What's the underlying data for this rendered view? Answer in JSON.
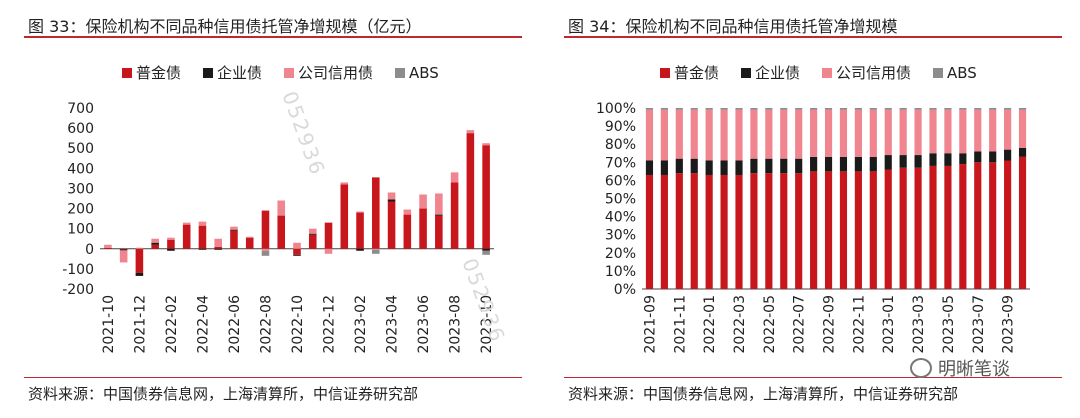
{
  "left_panel": {
    "title": "图 33：保险机构不同品种信用债托管净增规模（亿元）",
    "source": "资料来源：中国债券信息网，上海清算所，中信证券研究部"
  },
  "right_panel": {
    "title": "图 34：保险机构不同品种信用债托管净增规模",
    "source": "资料来源：中国债券信息网，上海清算所，中信证券研究部"
  },
  "watermark": "052936",
  "brand": "明晰笔谈",
  "colors": {
    "普金债": "#c8161d",
    "企业债": "#1a1a1a",
    "公司信用债": "#f0848f",
    "ABS": "#8c8c8c",
    "rule": "#c0282f"
  },
  "chart_data": [
    {
      "type": "bar",
      "stacked": true,
      "categories": [
        "2021-10",
        "2021-11",
        "2021-12",
        "2022-01",
        "2022-02",
        "2022-03",
        "2022-04",
        "2022-05",
        "2022-06",
        "2022-07",
        "2022-08",
        "2022-09",
        "2022-10",
        "2022-11",
        "2022-12",
        "2023-01",
        "2023-02",
        "2023-03",
        "2023-04",
        "2023-05",
        "2023-06",
        "2023-07",
        "2023-08",
        "2023-09",
        "2023-10"
      ],
      "tick_labels": [
        "2021-10",
        "2021-12",
        "2022-02",
        "2022-04",
        "2022-06",
        "2022-08",
        "2022-10",
        "2022-12",
        "2023-02",
        "2023-04",
        "2023-06",
        "2023-08",
        "2023-10"
      ],
      "series": [
        {
          "name": "普金债",
          "values": [
            5,
            -3,
            -120,
            20,
            45,
            120,
            115,
            10,
            90,
            55,
            190,
            165,
            -30,
            70,
            130,
            320,
            180,
            355,
            235,
            170,
            200,
            165,
            330,
            575,
            515
          ]
        },
        {
          "name": "企业债",
          "values": [
            0,
            -5,
            -15,
            10,
            -10,
            0,
            -5,
            -5,
            5,
            0,
            0,
            0,
            -5,
            5,
            0,
            0,
            -10,
            0,
            10,
            0,
            0,
            5,
            0,
            0,
            -10
          ]
        },
        {
          "name": "公司信用债",
          "values": [
            15,
            -60,
            5,
            20,
            10,
            10,
            20,
            40,
            15,
            5,
            -10,
            75,
            30,
            25,
            -25,
            10,
            5,
            -5,
            35,
            25,
            70,
            105,
            50,
            15,
            10
          ]
        },
        {
          "name": "ABS",
          "values": [
            0,
            0,
            0,
            0,
            0,
            0,
            0,
            0,
            0,
            0,
            -25,
            0,
            0,
            0,
            0,
            0,
            0,
            -20,
            0,
            0,
            0,
            0,
            0,
            0,
            -20
          ]
        }
      ],
      "yticks": [
        "700",
        "600",
        "500",
        "400",
        "300",
        "200",
        "100",
        "0",
        "-100",
        "-200"
      ],
      "ylim": [
        -200,
        700
      ],
      "legend_position": "top"
    },
    {
      "type": "bar",
      "stacked": true,
      "percent": true,
      "categories": [
        "2021-09",
        "2021-10",
        "2021-11",
        "2021-12",
        "2022-01",
        "2022-02",
        "2022-03",
        "2022-04",
        "2022-05",
        "2022-06",
        "2022-07",
        "2022-08",
        "2022-09",
        "2022-10",
        "2022-11",
        "2022-12",
        "2023-01",
        "2023-02",
        "2023-03",
        "2023-04",
        "2023-05",
        "2023-06",
        "2023-07",
        "2023-08",
        "2023-09",
        "2023-10"
      ],
      "tick_labels": [
        "2021-09",
        "2021-11",
        "2022-01",
        "2022-03",
        "2022-05",
        "2022-07",
        "2022-09",
        "2022-11",
        "2023-01",
        "2023-03",
        "2023-05",
        "2023-07",
        "2023-09"
      ],
      "series": [
        {
          "name": "普金债",
          "values": [
            63,
            63,
            64,
            64,
            63,
            63,
            63,
            64,
            64,
            64,
            64,
            65,
            65,
            65,
            65,
            65,
            66,
            67,
            67,
            68,
            68,
            69,
            70,
            70,
            71,
            73
          ]
        },
        {
          "name": "企业债",
          "values": [
            8,
            8,
            8,
            8,
            8,
            8,
            8,
            8,
            8,
            8,
            8,
            8,
            8,
            8,
            8,
            8,
            8,
            7,
            7,
            7,
            7,
            6,
            6,
            6,
            6,
            5
          ]
        },
        {
          "name": "公司信用债",
          "values": [
            28,
            28,
            27,
            27,
            28,
            28,
            28,
            27,
            27,
            27,
            27,
            26,
            26,
            26,
            26,
            26,
            25,
            25,
            25,
            24,
            24,
            24,
            23,
            23,
            22,
            21
          ]
        },
        {
          "name": "ABS",
          "values": [
            1,
            1,
            1,
            1,
            1,
            1,
            1,
            1,
            1,
            1,
            1,
            1,
            1,
            1,
            1,
            1,
            1,
            1,
            1,
            1,
            1,
            1,
            1,
            1,
            1,
            1
          ]
        }
      ],
      "yticks": [
        "100%",
        "90%",
        "80%",
        "70%",
        "60%",
        "50%",
        "40%",
        "30%",
        "20%",
        "10%",
        "0%"
      ],
      "ylim": [
        0,
        100
      ],
      "legend_position": "top"
    }
  ]
}
